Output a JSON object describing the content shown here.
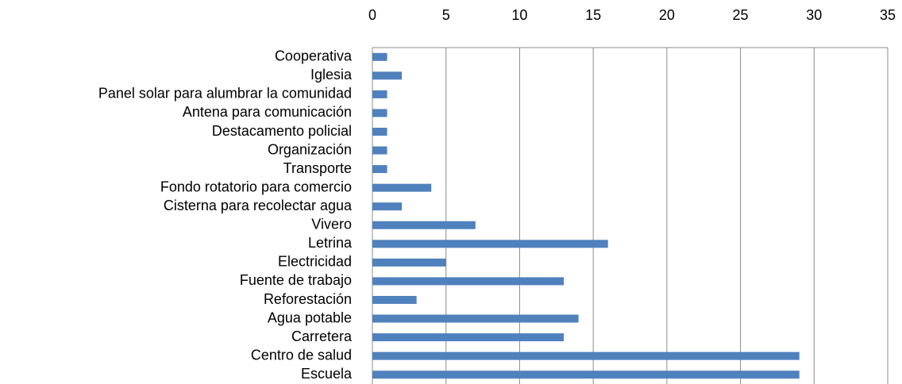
{
  "chart_data": {
    "type": "bar",
    "orientation": "horizontal",
    "categories": [
      "Cooperativa",
      "Iglesia",
      "Panel solar para alumbrar la comunidad",
      "Antena para comunicación",
      "Destacamento policial",
      "Organización",
      "Transporte",
      "Fondo rotatorio para comercio",
      "Cisterna para recolectar agua",
      "Vivero",
      "Letrina",
      "Electricidad",
      "Fuente de trabajo",
      "Reforestación",
      "Agua potable",
      "Carretera",
      "Centro de salud",
      "Escuela"
    ],
    "values": [
      1,
      2,
      1,
      1,
      1,
      1,
      1,
      4,
      2,
      7,
      16,
      5,
      13,
      3,
      14,
      13,
      29,
      29
    ],
    "color": "#4f81bd",
    "xlim": [
      0,
      35
    ],
    "xticks": [
      0,
      5,
      10,
      15,
      20,
      25,
      30,
      35
    ],
    "grid": true
  }
}
